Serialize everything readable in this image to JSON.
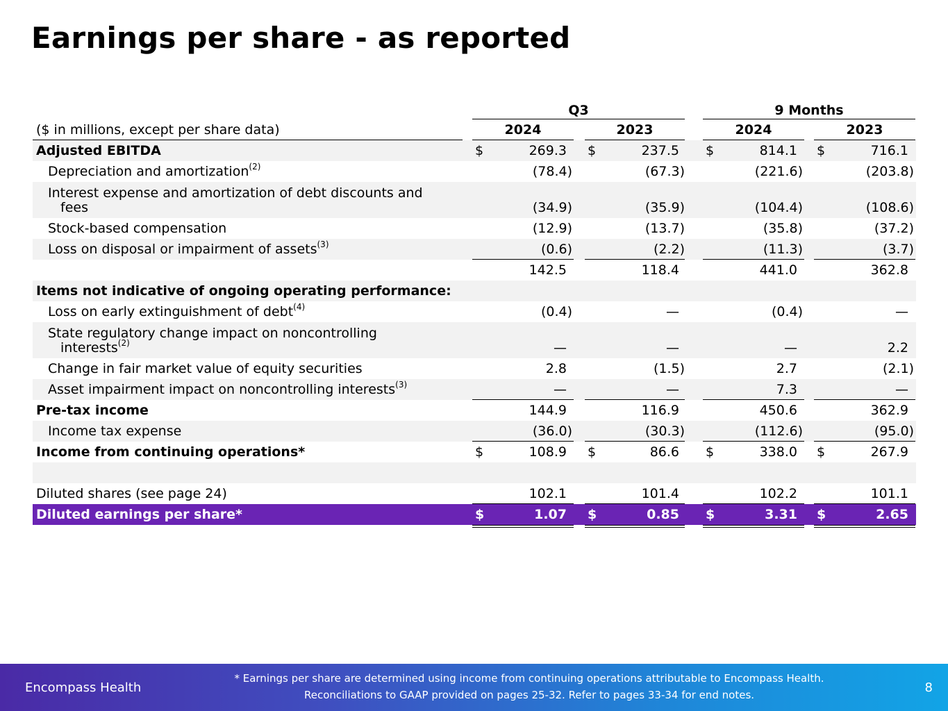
{
  "title": "Earnings per share - as reported",
  "header": {
    "group_q3": "Q3",
    "group_9m": "9 Months",
    "units_label": "($ in millions, except per share data)",
    "years": [
      "2024",
      "2023",
      "2024",
      "2023"
    ]
  },
  "rows": [
    {
      "label": "Adjusted EBITDA",
      "values": [
        "269.3",
        "237.5",
        "814.1",
        "716.1"
      ]
    },
    {
      "label": "Depreciation and amortization",
      "sup": "(2)",
      "values": [
        "(78.4)",
        "(67.3)",
        "(221.6)",
        "(203.8)"
      ]
    },
    {
      "label1": "Interest expense and amortization of debt discounts and",
      "label2": "fees",
      "values": [
        "(34.9)",
        "(35.9)",
        "(104.4)",
        "(108.6)"
      ]
    },
    {
      "label": "Stock-based compensation",
      "values": [
        "(12.9)",
        "(13.7)",
        "(35.8)",
        "(37.2)"
      ]
    },
    {
      "label": "Loss on disposal or impairment of assets",
      "sup": "(3)",
      "values": [
        "(0.6)",
        "(2.2)",
        "(11.3)",
        "(3.7)"
      ]
    },
    {
      "values": [
        "142.5",
        "118.4",
        "441.0",
        "362.8"
      ]
    },
    {
      "label": "Items not indicative of ongoing operating performance:"
    },
    {
      "label": "Loss on early extinguishment of debt",
      "sup": "(4)",
      "values": [
        "(0.4)",
        "—",
        "(0.4)",
        "—"
      ]
    },
    {
      "label1": "State regulatory change impact on noncontrolling",
      "label2": "interests",
      "sup": "(2)",
      "values": [
        "—",
        "—",
        "—",
        "2.2"
      ]
    },
    {
      "label": "Change in fair market value of equity securities",
      "values": [
        "2.8",
        "(1.5)",
        "2.7",
        "(2.1)"
      ]
    },
    {
      "label": "Asset impairment impact on noncontrolling interests",
      "sup": "(3)",
      "values": [
        "—",
        "—",
        "7.3",
        "—"
      ]
    },
    {
      "label": "Pre-tax income",
      "values": [
        "144.9",
        "116.9",
        "450.6",
        "362.9"
      ]
    },
    {
      "label": "Income tax expense",
      "values": [
        "(36.0)",
        "(30.3)",
        "(112.6)",
        "(95.0)"
      ]
    },
    {
      "label": "Income from continuing operations*",
      "values": [
        "108.9",
        "86.6",
        "338.0",
        "267.9"
      ]
    },
    {},
    {
      "label": "Diluted shares (see page 24)",
      "values": [
        "102.1",
        "101.4",
        "102.2",
        "101.1"
      ]
    },
    {
      "label": "Diluted earnings per share*",
      "values": [
        "1.07",
        "0.85",
        "3.31",
        "2.65"
      ]
    }
  ],
  "currency_symbol": "$",
  "footer": {
    "brand": "Encompass Health",
    "note_line1": "* Earnings per share are determined using income from continuing operations attributable to Encompass Health.",
    "note_line2": "Reconciliations to GAAP provided on pages 25-32. Refer to pages 33-34 for end notes.",
    "page_number": "8"
  },
  "colors": {
    "eps_row_bg": "#6a24b4",
    "shade_row_bg": "#f2f2f2",
    "footer_gradient_start": "#4a2aa6",
    "footer_gradient_end": "#12a4e6"
  }
}
